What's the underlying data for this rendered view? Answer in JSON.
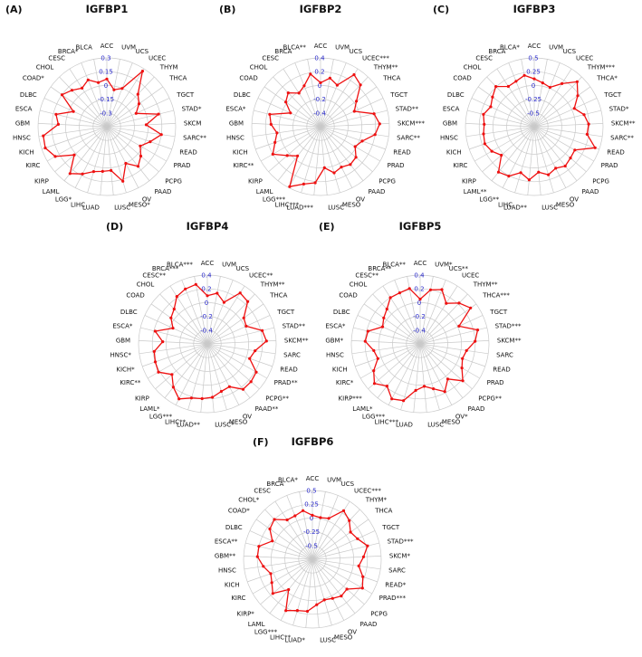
{
  "figure": {
    "background": "#ffffff",
    "line_color": "#ee1111",
    "grid_color": "#c9c9c9",
    "tick_color": "#2929cc",
    "label_color": "#111111"
  },
  "chart_data": [
    {
      "type": "radar",
      "panel": "(A)",
      "title": "IGFBP1",
      "axis_ticks": [
        0.3,
        0.15,
        0,
        -0.15,
        -0.3
      ],
      "min": -0.3,
      "max": 0.3,
      "grid": true,
      "categories": [
        "ACC",
        "UVM",
        "UCS",
        "UCEC",
        "THYM",
        "THCA",
        "TGCT",
        "STAD*",
        "SKCM",
        "SARC**",
        "READ",
        "PRAD",
        "PCPG",
        "PAAD",
        "OV",
        "MESO*",
        "LUSC",
        "LUAD",
        "LIHC",
        "LGG*",
        "LAML",
        "KIRP",
        "KIRC",
        "KICH",
        "HNSC",
        "GBM",
        "ESCA",
        "DLBC",
        "COAD*",
        "CHOL",
        "CESC",
        "BRCA*",
        "BLCA"
      ],
      "values": [
        0.07,
        -0.04,
        0.0,
        0.27,
        0.04,
        -0.02,
        -0.1,
        0.13,
        -0.02,
        0.15,
        0.05,
        -0.03,
        0.04,
        0.1,
        0.0,
        0.17,
        0.03,
        0.04,
        0.06,
        0.13,
        0.2,
        0.02,
        0.2,
        0.26,
        0.25,
        0.08,
        0.12,
        -0.05,
        0.15,
        0.1,
        0.05,
        0.1,
        0.04
      ]
    },
    {
      "type": "radar",
      "panel": "(B)",
      "title": "IGFBP2",
      "axis_ticks": [
        0.4,
        0.2,
        0,
        -0.2,
        -0.4
      ],
      "min": -0.4,
      "max": 0.4,
      "grid": true,
      "categories": [
        "ACC",
        "UVM",
        "UCS",
        "UCEC***",
        "THYM**",
        "THCA",
        "TGCT",
        "STAD**",
        "SKCM***",
        "SARC**",
        "READ",
        "PRAD",
        "PCPG",
        "PAAD",
        "OV",
        "MESO",
        "LUSC",
        "LUAD***",
        "LIHC***",
        "LGG***",
        "LAML",
        "KIRP",
        "KIRC**",
        "KICH",
        "HNSC",
        "GBM",
        "ESCA*",
        "DLBC",
        "COAD",
        "CHOL",
        "CESC",
        "BRCA",
        "BLCA**"
      ],
      "values": [
        0.04,
        0.12,
        0.05,
        0.3,
        0.24,
        0.04,
        -0.06,
        0.2,
        0.26,
        0.2,
        0.04,
        -0.02,
        0.08,
        0.1,
        0.06,
        0.1,
        0.0,
        0.22,
        0.27,
        0.38,
        -0.06,
        0.04,
        0.2,
        0.1,
        0.04,
        0.12,
        0.16,
        -0.12,
        0.02,
        0.08,
        -0.02,
        0.04,
        0.18
      ]
    },
    {
      "type": "radar",
      "panel": "(C)",
      "title": "IGFBP3",
      "axis_ticks": [
        0.5,
        0.25,
        0,
        -0.25,
        -0.5
      ],
      "min": -0.5,
      "max": 0.5,
      "grid": true,
      "categories": [
        "ACC",
        "UVM",
        "UCS",
        "UCEC",
        "THYM***",
        "THCA*",
        "TGCT",
        "STAD*",
        "SKCM**",
        "SARC**",
        "READ",
        "PRAD",
        "PCPG",
        "PAAD",
        "OV",
        "MESO",
        "LUSC",
        "LUAD**",
        "LIHC",
        "LGG**",
        "LAML**",
        "KIRP",
        "KIRC",
        "KICH",
        "HNSC",
        "GBM",
        "ESCA",
        "DLBC",
        "COAD",
        "CHOL",
        "CESC",
        "BRCA",
        "BLCA*"
      ],
      "values": [
        0.12,
        0.06,
        0.02,
        0.18,
        0.38,
        0.22,
        0.05,
        0.18,
        0.24,
        0.22,
        0.42,
        0.1,
        0.12,
        0.16,
        0.1,
        0.16,
        0.08,
        0.22,
        0.12,
        0.26,
        0.3,
        0.04,
        0.14,
        0.2,
        0.18,
        0.16,
        0.2,
        0.12,
        0.18,
        0.26,
        0.12,
        0.14,
        0.2
      ]
    },
    {
      "type": "radar",
      "panel": "(D)",
      "title": "IGFBP4",
      "axis_ticks": [
        0.4,
        0.2,
        0,
        -0.2,
        -0.4
      ],
      "min": -0.4,
      "max": 0.4,
      "grid": true,
      "categories": [
        "ACC",
        "UVM",
        "UCS",
        "UCEC**",
        "THYM**",
        "THCA",
        "TGCT",
        "STAD**",
        "SKCM**",
        "SARC",
        "READ",
        "PRAD**",
        "PCPG**",
        "PAAD**",
        "OV",
        "MESO",
        "LUSC*",
        "LUAD**",
        "LIHC**",
        "LGG***",
        "LAML*",
        "KIRP",
        "KIRC**",
        "KICH*",
        "HNSC*",
        "GBM",
        "ESCA*",
        "DLBC",
        "COAD",
        "CHOL",
        "CESC**",
        "BRCA***",
        "BLCA***"
      ],
      "values": [
        0.1,
        0.15,
        0.05,
        0.28,
        0.25,
        0.05,
        0.02,
        0.22,
        0.26,
        0.1,
        0.05,
        0.22,
        0.24,
        0.24,
        0.1,
        0.12,
        0.18,
        0.2,
        0.22,
        0.3,
        0.2,
        0.08,
        0.22,
        0.2,
        0.18,
        0.05,
        0.18,
        -0.05,
        0.05,
        0.1,
        0.22,
        0.26,
        0.28
      ]
    },
    {
      "type": "radar",
      "panel": "(E)",
      "title": "IGFBP5",
      "axis_ticks": [
        0.4,
        0.2,
        0,
        -0.2,
        -0.4
      ],
      "min": -0.4,
      "max": 0.4,
      "grid": true,
      "categories": [
        "ACC",
        "UVM*",
        "UCS**",
        "UCEC",
        "THYM**",
        "THCA***",
        "TGCT",
        "STAD***",
        "SKCM**",
        "SARC",
        "READ",
        "PRAD",
        "PCPG**",
        "PAAD",
        "OV*",
        "MESO",
        "LUSC",
        "LUAD",
        "LIHC***",
        "LGG***",
        "LAML*",
        "KIRP***",
        "KIRC*",
        "KICH",
        "HNSC",
        "GBM*",
        "ESCA*",
        "DLBC",
        "COAD",
        "CHOL",
        "CESC**",
        "BRCA**",
        "BLCA**"
      ],
      "values": [
        0.05,
        0.2,
        0.25,
        0.1,
        0.22,
        0.3,
        0.02,
        0.26,
        0.2,
        0.08,
        0.05,
        0.1,
        0.22,
        0.05,
        0.18,
        0.08,
        0.02,
        0.08,
        0.26,
        0.3,
        0.18,
        0.28,
        0.18,
        0.05,
        0.08,
        0.2,
        0.18,
        0.0,
        0.05,
        0.1,
        0.2,
        0.2,
        0.22
      ]
    },
    {
      "type": "radar",
      "panel": "(F)",
      "title": "IGFBP6",
      "axis_ticks": [
        0.5,
        0.25,
        0,
        -0.25,
        -0.5
      ],
      "min": -0.5,
      "max": 0.5,
      "grid": true,
      "categories": [
        "ACC",
        "UVM",
        "UCS",
        "UCEC***",
        "THYM*",
        "THCA",
        "TGCT",
        "STAD***",
        "SKCM*",
        "SARC",
        "READ*",
        "PRAD***",
        "PCPG",
        "PAAD",
        "OV",
        "MESO",
        "LUSC",
        "LUAD*",
        "LIHC**",
        "LGG***",
        "LAML",
        "KIRP*",
        "KIRC",
        "KICH",
        "HNSC",
        "GBM**",
        "ESCA**",
        "DLBC",
        "COAD*",
        "CHOL*",
        "CESC",
        "BRCA",
        "BLCA*"
      ],
      "values": [
        0.05,
        0.02,
        0.05,
        0.3,
        0.22,
        0.1,
        0.15,
        0.28,
        0.18,
        0.1,
        0.22,
        0.3,
        0.08,
        0.1,
        0.05,
        0.02,
        0.08,
        0.2,
        0.22,
        0.3,
        -0.05,
        0.2,
        0.1,
        0.05,
        0.15,
        0.25,
        0.25,
        0.05,
        0.2,
        0.25,
        0.1,
        0.1,
        0.15
      ]
    }
  ]
}
